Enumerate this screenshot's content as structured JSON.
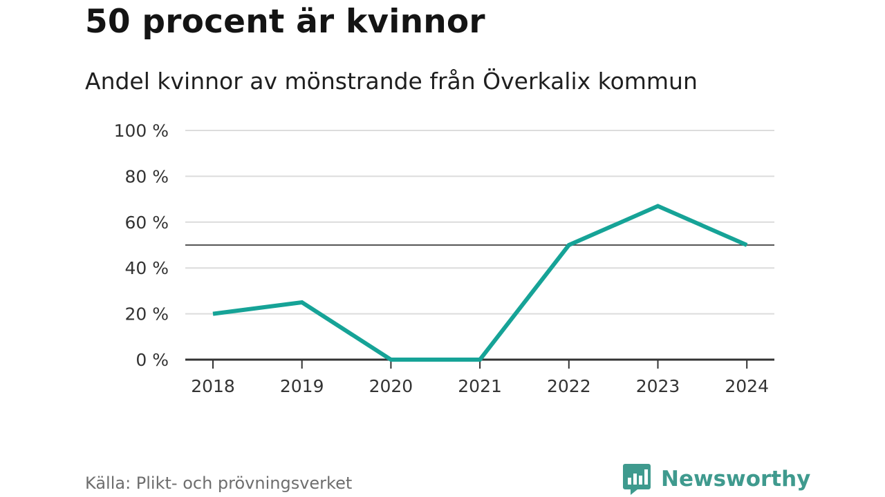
{
  "header": {
    "title": "50 procent är kvinnor",
    "subtitle": "Andel kvinnor av mönstrande från Överkalix kommun"
  },
  "footer": {
    "source": "Källa: Plikt- och prövningsverket",
    "brand": "Newsworthy",
    "brand_icon": "bar-chart-speech-bubble-icon"
  },
  "colors": {
    "line": "#16a397",
    "grid": "#dcdcdc",
    "reference": "#555555",
    "axis": "#333333",
    "brand": "#3f9a8e"
  },
  "chart_data": {
    "type": "line",
    "categories": [
      "2018",
      "2019",
      "2020",
      "2021",
      "2022",
      "2023",
      "2024"
    ],
    "series": [
      {
        "values": [
          20,
          25,
          0,
          0,
          50,
          67,
          50
        ]
      }
    ],
    "reference_line": 50,
    "ylim": [
      0,
      100
    ],
    "yticks": [
      0,
      20,
      40,
      60,
      80,
      100
    ],
    "ytick_labels": [
      "0 %",
      "20 %",
      "40 %",
      "60 %",
      "80 %",
      "100 %"
    ],
    "grid": true,
    "title": "50 procent är kvinnor",
    "subtitle": "Andel kvinnor av mönstrande från Överkalix kommun"
  }
}
